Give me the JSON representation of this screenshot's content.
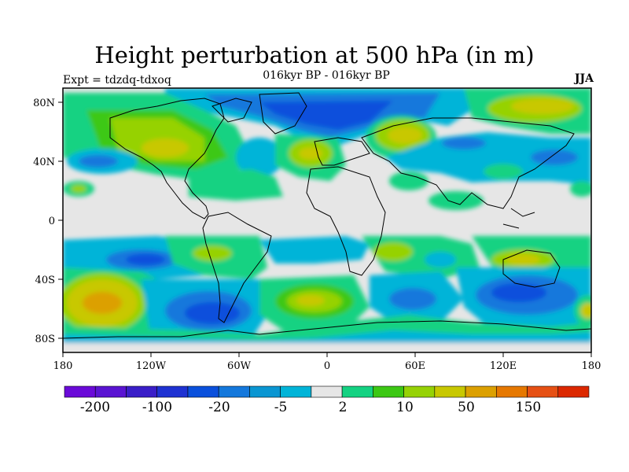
{
  "title": "Height perturbation at 500 hPa (in m)",
  "expt_label": "Expt = tdzdq-tdxoq",
  "subtitle": "016kyr BP - 016kyr BP",
  "season": "JJA",
  "lat_ticks": [
    "80N",
    "40N",
    "0",
    "40S",
    "80S"
  ],
  "lon_ticks": [
    "180",
    "120W",
    "60W",
    "0",
    "60E",
    "120E",
    "180"
  ],
  "colorbar": {
    "colors": [
      "#6a0ad8",
      "#5a14d2",
      "#3a1ec8",
      "#1e32d2",
      "#0a50dc",
      "#1478dc",
      "#0a96d2",
      "#00b4d8",
      "#e6e6e6",
      "#14d282",
      "#3cc814",
      "#96d205",
      "#c8c800",
      "#dca000",
      "#e67800",
      "#e65014",
      "#dc2800"
    ],
    "labels": [
      "-200",
      "-100",
      "-20",
      "-5",
      "2",
      "10",
      "50",
      "150"
    ]
  },
  "legend_colors": {
    "neutral": "#e6e6e6",
    "green": "#14d282",
    "lime": "#3cc814",
    "yellowgreen": "#96d205",
    "yellow": "#c8c800",
    "orange": "#dca000",
    "cyan": "#00b4d8",
    "blue": "#0a96d2",
    "darkblue": "#1478dc",
    "navy": "#0a50dc"
  }
}
